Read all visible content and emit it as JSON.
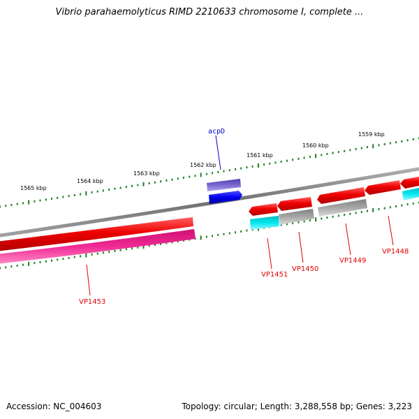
{
  "title": "Vibrio parahaemolyticus RIMD 2210633 chromosome I, complete ...",
  "footer": {
    "accession": "Accession: NC_004603",
    "topology": "Topology: circular; Length: 3,288,558 bp; Genes: 3,223"
  },
  "colors": {
    "backbone": "#8a8a8a",
    "scale_ticks": "#1f7f1f",
    "gene_red": "#ee0000",
    "gene_magenta": "#ee2090",
    "gene_cyan": "#00e5ee",
    "gene_gray": "#a0a0a0",
    "gene_purple": "#7060c8",
    "gene_blue": "#0000ee",
    "red_label": "#dd0000",
    "blue_label": "#0000cc"
  },
  "scale_labels": [
    "1565 kbp",
    "1564 kbp",
    "1563 kbp",
    "1562 kbp",
    "1561 kbp",
    "1560 kbp",
    "1559 kbp"
  ],
  "gene_labels": [
    {
      "text": "acpD",
      "color": "blue"
    },
    {
      "text": "VP1453",
      "color": "red"
    },
    {
      "text": "VP1451",
      "color": "red"
    },
    {
      "text": "VP1450",
      "color": "red"
    },
    {
      "text": "VP1449",
      "color": "red"
    },
    {
      "text": "VP1448",
      "color": "red"
    }
  ]
}
